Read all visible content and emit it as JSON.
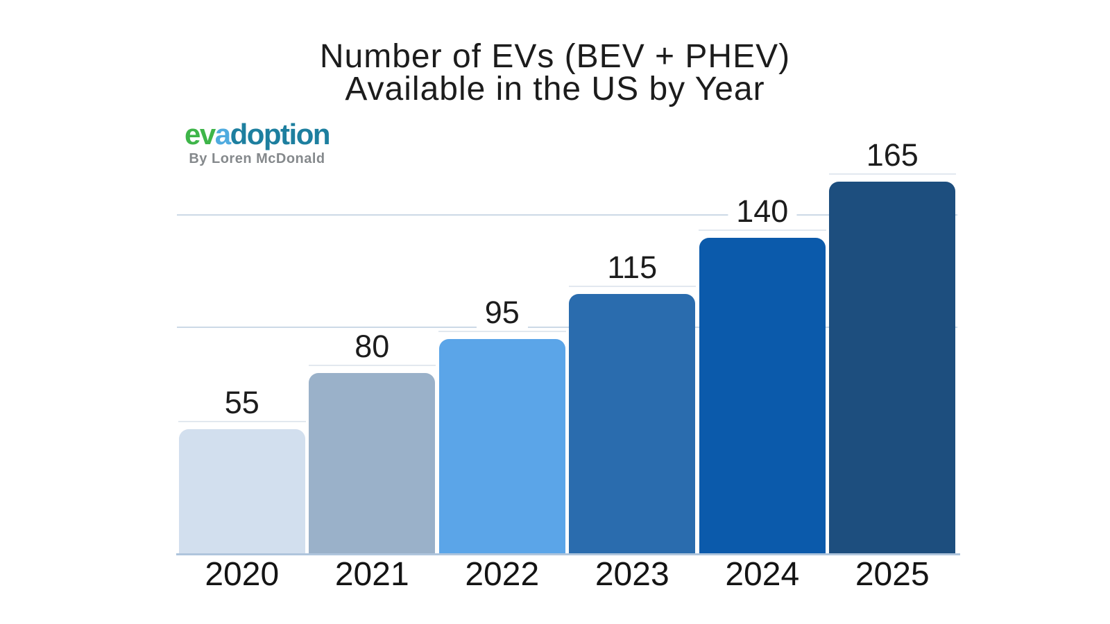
{
  "logo": {
    "word_part1": "ev",
    "word_part2": "a",
    "word_part3": "doption",
    "byline": "By Loren McDonald",
    "colors": {
      "part1": "#3eb549",
      "part2": "#4fabdf",
      "part3": "#1d7f9f",
      "byline": "#85898c"
    }
  },
  "chart_data": {
    "type": "bar",
    "title": "Number of EVs (BEV + PHEV) Available in the US by Year",
    "title_lines": [
      "Number of EVs (BEV + PHEV)",
      "Available in the US by Year"
    ],
    "categories": [
      "2020",
      "2021",
      "2022",
      "2023",
      "2024",
      "2025"
    ],
    "values": [
      55,
      80,
      95,
      115,
      140,
      165
    ],
    "bar_colors": [
      "#d2dfee",
      "#9ab1c9",
      "#5ba5e8",
      "#2a6cae",
      "#0b5aab",
      "#1d4e7e"
    ],
    "xlabel": "",
    "ylabel": "",
    "ylim": [
      0,
      185
    ],
    "gridline_values": [
      100,
      150
    ],
    "grid": "horizontal, lines at 100 and 150 only, no y-axis tick labels",
    "legend": "none",
    "data_labels": "above each bar, white halo background, faint leader line under each label spanning the bar slot"
  }
}
